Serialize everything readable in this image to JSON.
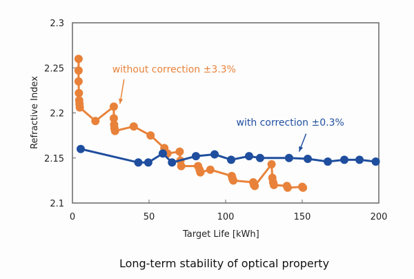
{
  "chart_data": {
    "type": "line",
    "title": "Long-term stability of optical property",
    "xlabel": "Target Life [kWh]",
    "ylabel": "Refractive Index",
    "xlim": [
      0,
      200
    ],
    "ylim": [
      2.1,
      2.3
    ],
    "xticks": [
      0,
      50,
      100,
      150,
      200
    ],
    "xtick_labels": [
      "0",
      "50",
      "100",
      "150",
      "200"
    ],
    "yticks": [
      2.1,
      2.15,
      2.2,
      2.25,
      2.3
    ],
    "ytick_labels": [
      "2.1",
      "2.15",
      "2.2",
      "2.25",
      "2.3"
    ],
    "grid": false,
    "series": [
      {
        "name": "without correction",
        "color": "#e8823a",
        "x": [
          4,
          4,
          4,
          4.2,
          4.4,
          4.6,
          4.8,
          15,
          27,
          27,
          27.2,
          27.4,
          27.8,
          40,
          51,
          60,
          62,
          70,
          70.5,
          71,
          82,
          83,
          83.5,
          90,
          104,
          104.5,
          105,
          118,
          118.5,
          119,
          130,
          130.5,
          131,
          131.5,
          140,
          140.5,
          150,
          150.5
        ],
        "y": [
          2.26,
          2.247,
          2.235,
          2.222,
          2.214,
          2.21,
          2.206,
          2.191,
          2.207,
          2.194,
          2.187,
          2.183,
          2.18,
          2.185,
          2.175,
          2.161,
          2.155,
          2.157,
          2.147,
          2.141,
          2.141,
          2.137,
          2.134,
          2.137,
          2.13,
          2.127,
          2.125,
          2.123,
          2.12,
          2.119,
          2.143,
          2.128,
          2.123,
          2.12,
          2.119,
          2.117,
          2.118,
          2.117
        ]
      },
      {
        "name": "with correction",
        "color": "#1f4e9e",
        "x": [
          5.4,
          43,
          49.5,
          59,
          65,
          80.6,
          92.8,
          103.6,
          115.3,
          122.5,
          141.4,
          153.6,
          166.7,
          177.5,
          187.4,
          198
        ],
        "y": [
          2.16,
          2.145,
          2.145,
          2.155,
          2.145,
          2.152,
          2.154,
          2.148,
          2.152,
          2.15,
          2.15,
          2.149,
          2.146,
          2.148,
          2.148,
          2.146
        ]
      }
    ],
    "annotations": [
      {
        "text": "without correction  ±3.3%",
        "series": "without correction",
        "target_x": 31,
        "target_y": 2.21,
        "label_x": 26,
        "label_y": 2.245
      },
      {
        "text": "with correction  ±0.3%",
        "series": "with correction",
        "target_x": 148,
        "target_y": 2.157,
        "label_x": 107,
        "label_y": 2.186
      }
    ]
  }
}
